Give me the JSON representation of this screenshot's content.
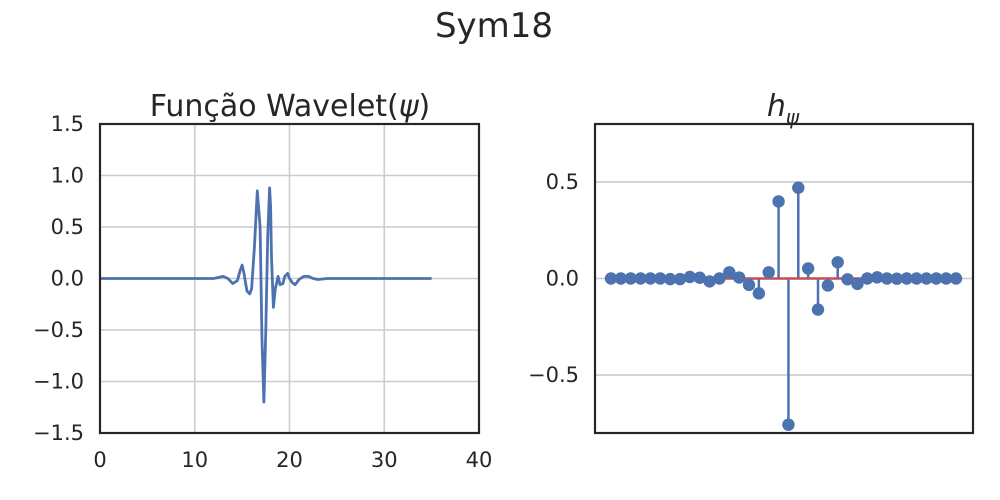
{
  "figure_title": "Sym18",
  "chart_data": [
    {
      "type": "line",
      "title_parts": {
        "text": "Função Wavelet(",
        "symbol": "ψ",
        "close": ")"
      },
      "xlabel": "",
      "ylabel": "",
      "xlim": [
        0,
        40
      ],
      "ylim": [
        -1.5,
        1.5
      ],
      "xticks": [
        "0",
        "10",
        "20",
        "30",
        "40"
      ],
      "yticks": [
        "−1.5",
        "−1.0",
        "−0.5",
        "0.0",
        "0.5",
        "1.0",
        "1.5"
      ],
      "grid": true,
      "color": "#4c72b0",
      "series": [
        {
          "x": [
            0,
            10,
            12,
            12.5,
            13,
            13.5,
            14,
            14.5,
            14.8,
            15.0,
            15.2,
            15.5,
            15.8,
            16.0,
            16.3,
            16.6,
            16.9,
            17.1,
            17.3,
            17.5,
            17.7,
            17.9,
            18.0,
            18.1,
            18.3,
            18.5,
            18.8,
            19.0,
            19.3,
            19.5,
            19.8,
            20.0,
            20.3,
            20.6,
            21.0,
            21.5,
            22.0,
            22.5,
            23.0,
            24.0,
            25.0,
            35.0
          ],
          "y": [
            0.0,
            0.0,
            0.0,
            0.01,
            0.02,
            0.0,
            -0.05,
            -0.02,
            0.08,
            0.13,
            0.05,
            -0.12,
            -0.15,
            -0.1,
            0.3,
            0.85,
            0.5,
            -0.6,
            -1.2,
            -0.5,
            0.4,
            0.88,
            0.7,
            0.2,
            -0.28,
            -0.1,
            0.02,
            -0.06,
            -0.05,
            0.02,
            0.05,
            0.0,
            -0.04,
            -0.06,
            -0.01,
            0.02,
            0.02,
            0.0,
            -0.01,
            0.0,
            0.0,
            0.0
          ]
        }
      ]
    },
    {
      "type": "stem",
      "title_parts": {
        "text": "h",
        "symbol": "ψ"
      },
      "xlabel": "",
      "ylabel": "",
      "ylim": [
        -0.8,
        0.8
      ],
      "yticks": [
        "0.5",
        "0.0",
        "−0.5"
      ],
      "ytick_values": [
        0.5,
        0.0,
        -0.5
      ],
      "xticks": [],
      "grid": true,
      "stem_color": "#4c72b0",
      "baseline_color": "#c44e52",
      "values": [
        0.0,
        0.0,
        0.0,
        0.0,
        0.0,
        0.0,
        -0.003,
        -0.003,
        0.008,
        0.004,
        -0.015,
        0.0,
        0.032,
        0.005,
        -0.033,
        -0.077,
        0.032,
        0.399,
        -0.757,
        0.47,
        0.052,
        -0.161,
        -0.036,
        0.084,
        -0.004,
        -0.028,
        0.0,
        0.006,
        0.0,
        -0.001,
        0.0,
        0.0,
        0.0,
        0.0,
        0.0,
        0.0
      ]
    }
  ]
}
